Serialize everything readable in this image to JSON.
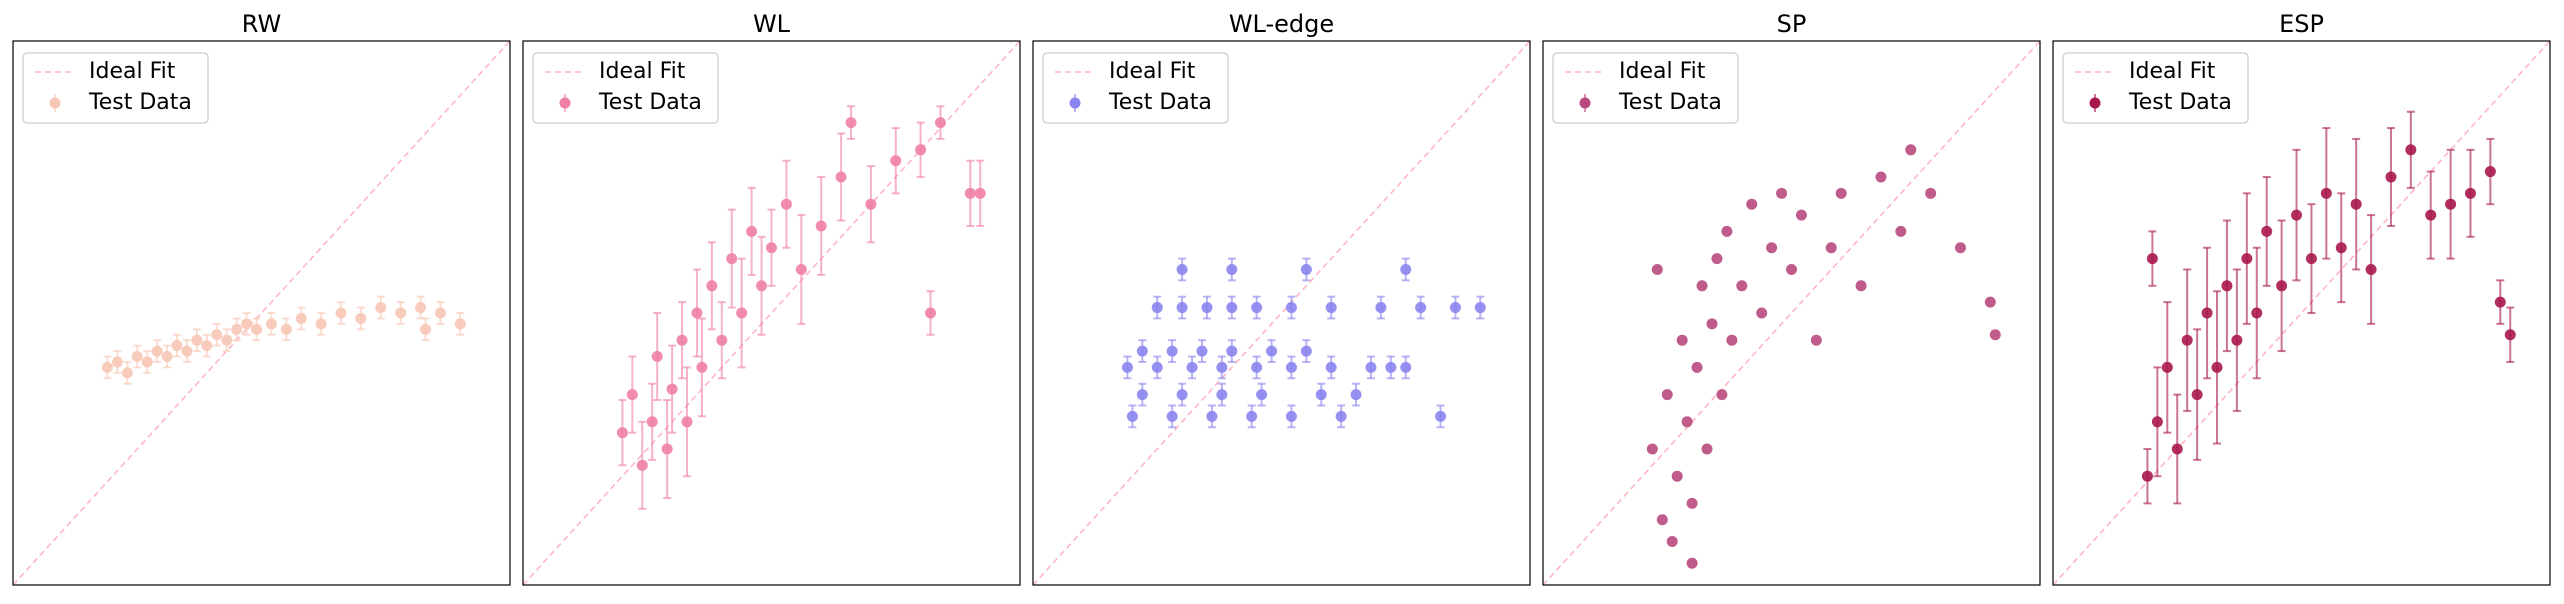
{
  "chart_data": [
    {
      "type": "scatter",
      "title": "RW",
      "xlim": [
        0,
        1
      ],
      "ylim": [
        0,
        1
      ],
      "legend": "upper left",
      "series": [
        {
          "name": "Ideal Fit",
          "color": "#ffb6c1",
          "linestyle": "dashed",
          "x": [
            0,
            1
          ],
          "values": [
            0,
            1
          ]
        },
        {
          "name": "Test Data",
          "color": "#f7c6b5",
          "x": [
            0.19,
            0.21,
            0.23,
            0.25,
            0.27,
            0.29,
            0.31,
            0.33,
            0.35,
            0.37,
            0.39,
            0.41,
            0.43,
            0.45,
            0.47,
            0.49,
            0.52,
            0.55,
            0.58,
            0.62,
            0.66,
            0.7,
            0.74,
            0.78,
            0.82,
            0.86,
            0.9,
            0.83
          ],
          "values": [
            0.4,
            0.41,
            0.39,
            0.42,
            0.41,
            0.43,
            0.42,
            0.44,
            0.43,
            0.45,
            0.44,
            0.46,
            0.45,
            0.47,
            0.48,
            0.47,
            0.48,
            0.47,
            0.49,
            0.48,
            0.5,
            0.49,
            0.51,
            0.5,
            0.51,
            0.5,
            0.48,
            0.47
          ],
          "errors": [
            0.02,
            0.02,
            0.02,
            0.02,
            0.02,
            0.02,
            0.02,
            0.02,
            0.02,
            0.02,
            0.02,
            0.02,
            0.02,
            0.02,
            0.02,
            0.02,
            0.02,
            0.02,
            0.02,
            0.02,
            0.02,
            0.02,
            0.02,
            0.02,
            0.02,
            0.02,
            0.02,
            0.02
          ]
        }
      ]
    },
    {
      "type": "scatter",
      "title": "WL",
      "xlim": [
        0,
        1
      ],
      "ylim": [
        0,
        1
      ],
      "legend": "upper left",
      "series": [
        {
          "name": "Ideal Fit",
          "color": "#ffb6c1",
          "linestyle": "dashed",
          "x": [
            0,
            1
          ],
          "values": [
            0,
            1
          ]
        },
        {
          "name": "Test Data",
          "color": "#ef7fa6",
          "x": [
            0.2,
            0.22,
            0.24,
            0.26,
            0.27,
            0.29,
            0.3,
            0.32,
            0.33,
            0.35,
            0.36,
            0.38,
            0.4,
            0.42,
            0.44,
            0.46,
            0.48,
            0.5,
            0.53,
            0.56,
            0.6,
            0.64,
            0.66,
            0.7,
            0.75,
            0.8,
            0.84,
            0.82,
            0.9,
            0.92
          ],
          "values": [
            0.28,
            0.35,
            0.22,
            0.3,
            0.42,
            0.25,
            0.36,
            0.45,
            0.3,
            0.5,
            0.4,
            0.55,
            0.45,
            0.6,
            0.5,
            0.65,
            0.55,
            0.62,
            0.7,
            0.58,
            0.66,
            0.75,
            0.85,
            0.7,
            0.78,
            0.8,
            0.85,
            0.5,
            0.72,
            0.72
          ],
          "errors": [
            0.06,
            0.07,
            0.08,
            0.07,
            0.08,
            0.09,
            0.08,
            0.07,
            0.1,
            0.08,
            0.09,
            0.08,
            0.07,
            0.09,
            0.1,
            0.08,
            0.09,
            0.07,
            0.08,
            0.1,
            0.09,
            0.08,
            0.03,
            0.07,
            0.06,
            0.05,
            0.03,
            0.04,
            0.06,
            0.06
          ]
        }
      ]
    },
    {
      "type": "scatter",
      "title": "WL-edge",
      "xlim": [
        0,
        1
      ],
      "ylim": [
        0,
        1
      ],
      "legend": "upper left",
      "series": [
        {
          "name": "Ideal Fit",
          "color": "#ffb6c1",
          "linestyle": "dashed",
          "x": [
            0,
            1
          ],
          "values": [
            0,
            1
          ]
        },
        {
          "name": "Test Data",
          "color": "#8b84ef",
          "x": [
            0.25,
            0.3,
            0.35,
            0.4,
            0.45,
            0.52,
            0.6,
            0.7,
            0.78,
            0.85,
            0.9,
            0.22,
            0.28,
            0.34,
            0.4,
            0.48,
            0.55,
            0.19,
            0.25,
            0.32,
            0.38,
            0.45,
            0.52,
            0.6,
            0.68,
            0.72,
            0.75,
            0.22,
            0.3,
            0.38,
            0.46,
            0.58,
            0.65,
            0.2,
            0.28,
            0.36,
            0.44,
            0.52,
            0.62,
            0.82,
            0.3,
            0.4,
            0.55,
            0.75
          ],
          "values": [
            0.51,
            0.51,
            0.51,
            0.51,
            0.51,
            0.51,
            0.51,
            0.51,
            0.51,
            0.51,
            0.51,
            0.43,
            0.43,
            0.43,
            0.43,
            0.43,
            0.43,
            0.4,
            0.4,
            0.4,
            0.4,
            0.4,
            0.4,
            0.4,
            0.4,
            0.4,
            0.4,
            0.35,
            0.35,
            0.35,
            0.35,
            0.35,
            0.35,
            0.31,
            0.31,
            0.31,
            0.31,
            0.31,
            0.31,
            0.31,
            0.58,
            0.58,
            0.58,
            0.58
          ],
          "errors": [
            0.02,
            0.02,
            0.02,
            0.02,
            0.02,
            0.02,
            0.02,
            0.02,
            0.02,
            0.02,
            0.02,
            0.02,
            0.02,
            0.02,
            0.02,
            0.02,
            0.02,
            0.02,
            0.02,
            0.02,
            0.02,
            0.02,
            0.02,
            0.02,
            0.02,
            0.02,
            0.02,
            0.02,
            0.02,
            0.02,
            0.02,
            0.02,
            0.02,
            0.02,
            0.02,
            0.02,
            0.02,
            0.02,
            0.02,
            0.02,
            0.02,
            0.02,
            0.02,
            0.02
          ]
        }
      ]
    },
    {
      "type": "scatter",
      "title": "SP",
      "xlim": [
        0,
        1
      ],
      "ylim": [
        0,
        1
      ],
      "legend": "upper left",
      "series": [
        {
          "name": "Ideal Fit",
          "color": "#ffb6c1",
          "linestyle": "dashed",
          "x": [
            0,
            1
          ],
          "values": [
            0,
            1
          ]
        },
        {
          "name": "Test Data",
          "color": "#b94a7e",
          "x": [
            0.22,
            0.24,
            0.25,
            0.26,
            0.27,
            0.28,
            0.29,
            0.3,
            0.31,
            0.32,
            0.33,
            0.34,
            0.35,
            0.36,
            0.37,
            0.38,
            0.4,
            0.42,
            0.44,
            0.46,
            0.48,
            0.5,
            0.52,
            0.55,
            0.58,
            0.6,
            0.64,
            0.68,
            0.72,
            0.74,
            0.78,
            0.84,
            0.9,
            0.91,
            0.23,
            0.3
          ],
          "values": [
            0.25,
            0.12,
            0.35,
            0.08,
            0.2,
            0.45,
            0.3,
            0.15,
            0.4,
            0.55,
            0.25,
            0.48,
            0.6,
            0.35,
            0.65,
            0.45,
            0.55,
            0.7,
            0.5,
            0.62,
            0.72,
            0.58,
            0.68,
            0.45,
            0.62,
            0.72,
            0.55,
            0.75,
            0.65,
            0.8,
            0.72,
            0.62,
            0.52,
            0.46,
            0.58,
            0.04
          ]
        }
      ]
    },
    {
      "type": "scatter",
      "title": "ESP",
      "xlim": [
        0,
        1
      ],
      "ylim": [
        0,
        1
      ],
      "legend": "upper left",
      "series": [
        {
          "name": "Ideal Fit",
          "color": "#ffb6c1",
          "linestyle": "dashed",
          "x": [
            0,
            1
          ],
          "values": [
            0,
            1
          ]
        },
        {
          "name": "Test Data",
          "color": "#a8174e",
          "x": [
            0.19,
            0.21,
            0.23,
            0.25,
            0.27,
            0.29,
            0.31,
            0.33,
            0.35,
            0.37,
            0.39,
            0.41,
            0.43,
            0.46,
            0.49,
            0.52,
            0.55,
            0.58,
            0.61,
            0.64,
            0.68,
            0.72,
            0.76,
            0.8,
            0.84,
            0.88,
            0.9,
            0.92,
            0.2
          ],
          "values": [
            0.2,
            0.3,
            0.4,
            0.25,
            0.45,
            0.35,
            0.5,
            0.4,
            0.55,
            0.45,
            0.6,
            0.5,
            0.65,
            0.55,
            0.68,
            0.6,
            0.72,
            0.62,
            0.7,
            0.58,
            0.75,
            0.8,
            0.68,
            0.7,
            0.72,
            0.76,
            0.52,
            0.46,
            0.6
          ],
          "errors": [
            0.05,
            0.1,
            0.12,
            0.1,
            0.13,
            0.12,
            0.12,
            0.14,
            0.12,
            0.13,
            0.12,
            0.12,
            0.1,
            0.12,
            0.12,
            0.1,
            0.12,
            0.1,
            0.12,
            0.1,
            0.09,
            0.07,
            0.08,
            0.1,
            0.08,
            0.06,
            0.04,
            0.05,
            0.05
          ]
        }
      ]
    }
  ]
}
